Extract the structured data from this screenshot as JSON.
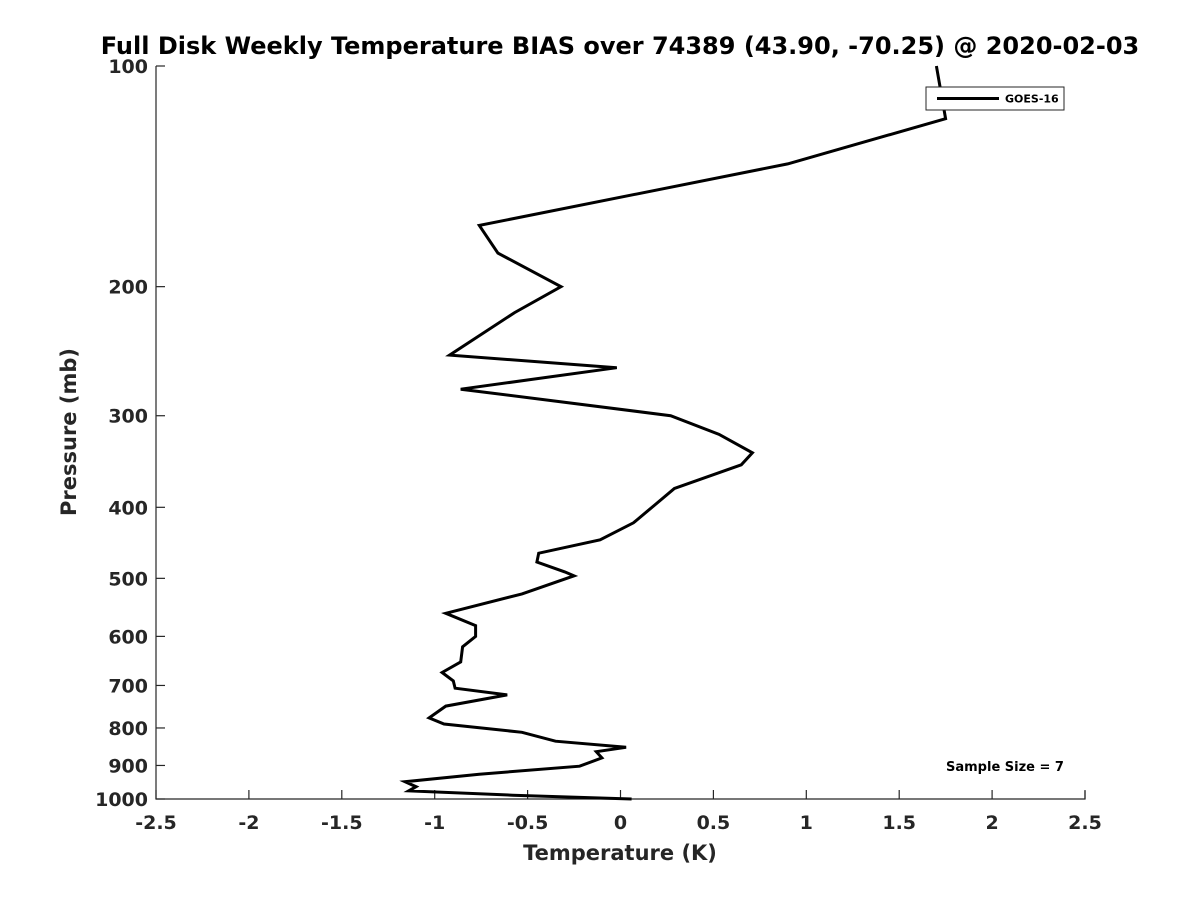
{
  "chart_data": {
    "type": "line",
    "title": "Full Disk Weekly Temperature BIAS over 74389 (43.90, -70.25) @ 2020-02-03",
    "xlabel": "Temperature (K)",
    "ylabel": "Pressure (mb)",
    "xlim": [
      -2.5,
      2.5
    ],
    "ylim": [
      100,
      1000
    ],
    "y_scale": "log",
    "y_reversed": true,
    "grid": false,
    "legend_position": "top-right",
    "x_ticks": [
      "-2.5",
      "-2",
      "-1.5",
      "-1",
      "-0.5",
      "0",
      "0.5",
      "1",
      "1.5",
      "2",
      "2.5"
    ],
    "y_ticks": [
      "100",
      "200",
      "300",
      "400",
      "500",
      "600",
      "700",
      "800",
      "900",
      "1000"
    ],
    "series": [
      {
        "name": "GOES-16",
        "color": "#000000",
        "points": [
          [
            1.7,
            100
          ],
          [
            1.75,
            118
          ],
          [
            0.9,
            136
          ],
          [
            -0.76,
            165
          ],
          [
            -0.66,
            180
          ],
          [
            -0.32,
            200
          ],
          [
            -0.57,
            217
          ],
          [
            -0.92,
            248
          ],
          [
            -0.02,
            258
          ],
          [
            -0.86,
            276
          ],
          [
            0.27,
            300
          ],
          [
            0.53,
            318
          ],
          [
            0.71,
            337
          ],
          [
            0.65,
            350
          ],
          [
            0.29,
            377
          ],
          [
            0.19,
            396
          ],
          [
            0.07,
            420
          ],
          [
            -0.11,
            443
          ],
          [
            -0.44,
            462
          ],
          [
            -0.45,
            475
          ],
          [
            -0.3,
            490
          ],
          [
            -0.25,
            496
          ],
          [
            -0.53,
            525
          ],
          [
            -0.94,
            558
          ],
          [
            -0.78,
            580
          ],
          [
            -0.78,
            600
          ],
          [
            -0.85,
            620
          ],
          [
            -0.86,
            650
          ],
          [
            -0.96,
            672
          ],
          [
            -0.9,
            690
          ],
          [
            -0.89,
            706
          ],
          [
            -0.61,
            721
          ],
          [
            -0.94,
            747
          ],
          [
            -1.03,
            775
          ],
          [
            -0.95,
            790
          ],
          [
            -0.53,
            811
          ],
          [
            -0.35,
            834
          ],
          [
            0.03,
            850
          ],
          [
            -0.13,
            862
          ],
          [
            -0.1,
            879
          ],
          [
            -0.22,
            902
          ],
          [
            -0.76,
            925
          ],
          [
            -1.16,
            947
          ],
          [
            -1.1,
            962
          ],
          [
            -1.14,
            975
          ],
          [
            -0.58,
            988
          ],
          [
            0.06,
            1000
          ]
        ]
      }
    ],
    "annotation": "Sample Size = 7"
  }
}
